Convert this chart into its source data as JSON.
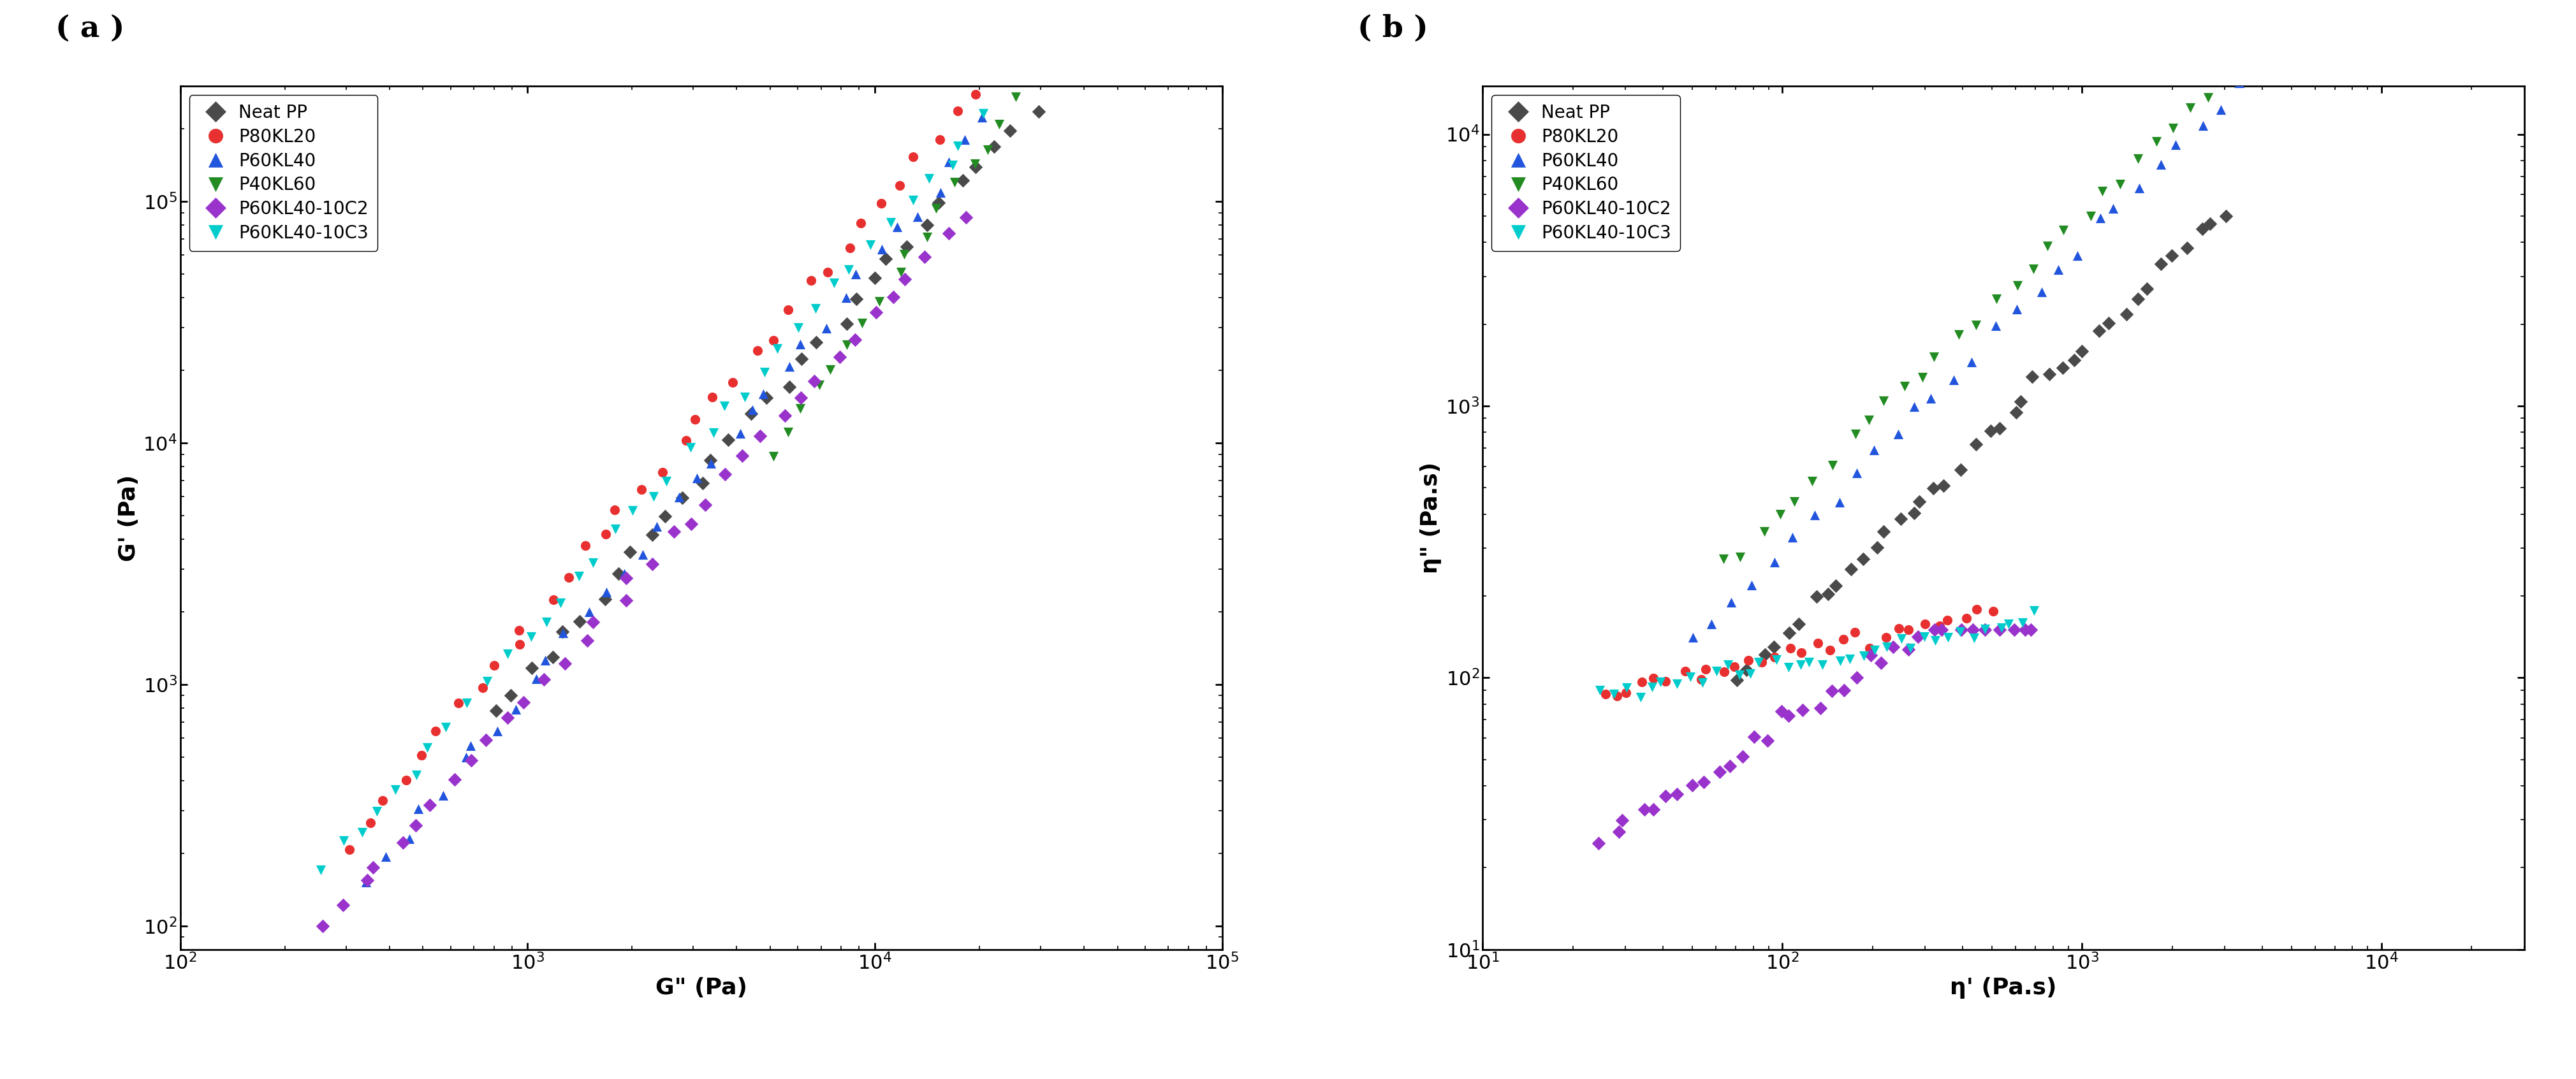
{
  "panel_a_label": "( a )",
  "panel_b_label": "( b )",
  "xlabel_a": "G\" (Pa)",
  "ylabel_a": "G' (Pa)",
  "xlabel_b": "η' (Pa.s)",
  "ylabel_b": "η\" (Pa.s)",
  "xlim_a": [
    100,
    100000
  ],
  "ylim_a": [
    80,
    300000
  ],
  "xlim_b": [
    10,
    30000
  ],
  "ylim_b": [
    10,
    15000
  ],
  "series": [
    {
      "label": "Neat PP",
      "color": "#4a4a4a",
      "marker": "D"
    },
    {
      "label": "P80KL20",
      "color": "#e83030",
      "marker": "o"
    },
    {
      "label": "P60KL40",
      "color": "#2255dd",
      "marker": "^"
    },
    {
      "label": "P40KL60",
      "color": "#228b22",
      "marker": "v"
    },
    {
      "label": "P60KL40-10C2",
      "color": "#9933cc",
      "marker": "D"
    },
    {
      "label": "P60KL40-10C3",
      "color": "#00cccc",
      "marker": "v"
    }
  ],
  "background_color": "#ffffff",
  "tick_fontsize": 22,
  "label_fontsize": 26,
  "legend_fontsize": 20,
  "panel_label_fontsize": 34,
  "marker_size": 120
}
